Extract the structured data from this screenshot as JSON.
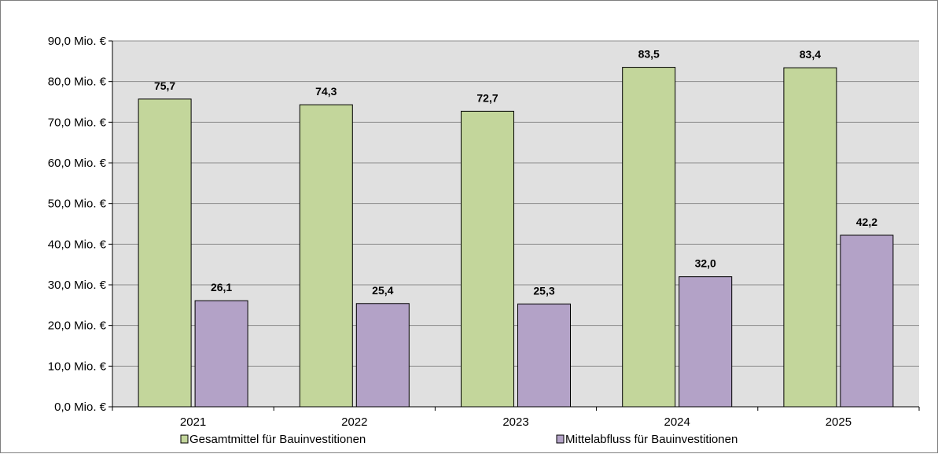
{
  "chart_data": {
    "type": "bar",
    "categories": [
      "2021",
      "2022",
      "2023",
      "2024",
      "2025"
    ],
    "series": [
      {
        "name": "Gesamtmittel für Bauinvestitionen",
        "values": [
          75.7,
          74.3,
          72.7,
          83.5,
          83.4
        ],
        "labels": [
          "75,7",
          "74,3",
          "72,7",
          "83,5",
          "83,4"
        ],
        "color": "#c3d69b"
      },
      {
        "name": "Mittelabfluss für Bauinvestitionen",
        "values": [
          26.1,
          25.4,
          25.3,
          32.0,
          42.2
        ],
        "labels": [
          "26,1",
          "25,4",
          "25,3",
          "32,0",
          "42,2"
        ],
        "color": "#b3a2c7"
      }
    ],
    "y_ticks": [
      "0,0 Mio. €",
      "10,0 Mio. €",
      "20,0 Mio. €",
      "30,0 Mio. €",
      "40,0 Mio. €",
      "50,0 Mio. €",
      "60,0 Mio. €",
      "70,0 Mio. €",
      "80,0 Mio. €",
      "90,0 Mio. €"
    ],
    "ylim": [
      0,
      90
    ],
    "grid": true,
    "plot_background": "#e0e0e0",
    "legend_position": "bottom"
  }
}
